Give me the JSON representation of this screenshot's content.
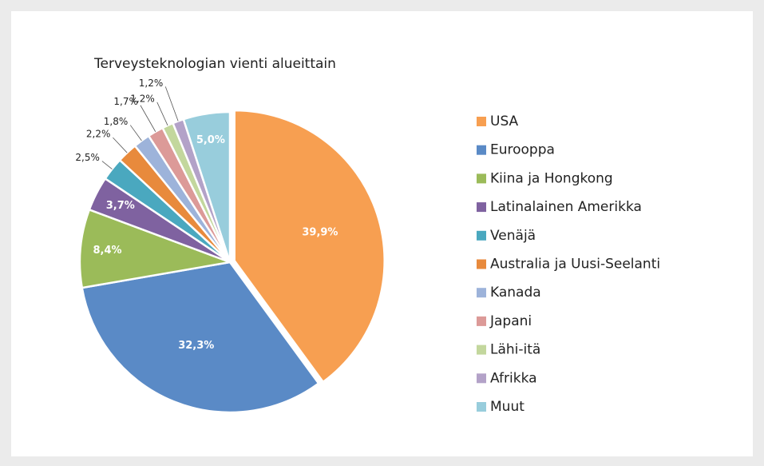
{
  "chart_data": {
    "type": "pie",
    "title": "Terveysteknologian vienti alueittain",
    "categories": [
      "USA",
      "Eurooppa",
      "Kiina ja Hongkong",
      "Latinalainen Amerikka",
      "Venäjä",
      "Australia ja Uusi-Seelanti",
      "Kanada",
      "Japani",
      "Lähi-itä",
      "Afrikka",
      "Muut"
    ],
    "values": [
      39.9,
      32.3,
      8.4,
      3.7,
      2.5,
      2.2,
      1.8,
      1.7,
      1.2,
      1.2,
      5.0
    ],
    "value_labels": [
      "39,9%",
      "32,3%",
      "8,4%",
      "3,7%",
      "2,5%",
      "2,2%",
      "1,8%",
      "1,7%",
      "1,2%",
      "1,2%",
      "5,0%"
    ],
    "colors": [
      "#f79f51",
      "#5a8ac6",
      "#9bbb59",
      "#7f62a0",
      "#4aa8bf",
      "#e88a3c",
      "#9db3da",
      "#dc9a98",
      "#c3d79d",
      "#b3a2c8",
      "#98cddc"
    ],
    "legend": "right"
  }
}
